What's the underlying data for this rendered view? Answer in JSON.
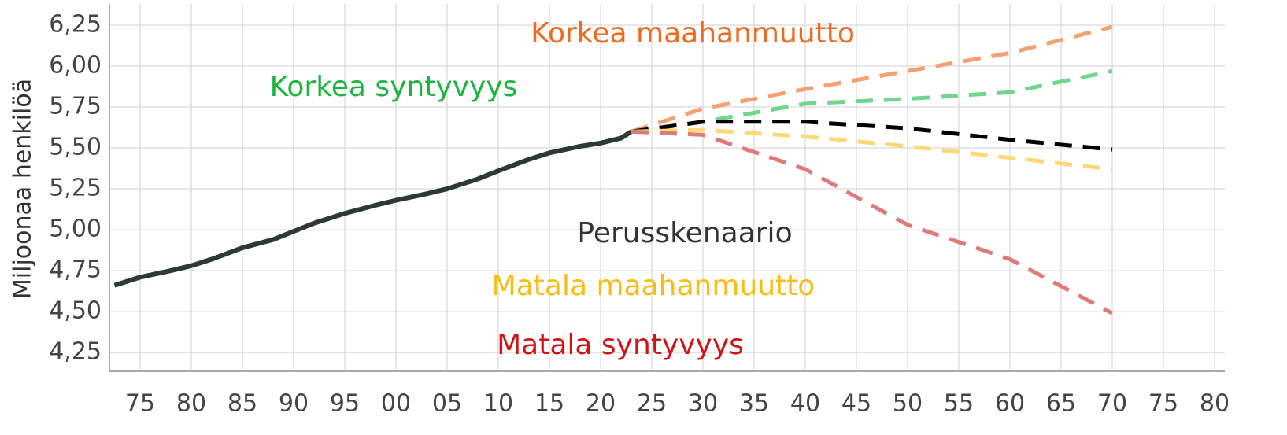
{
  "chart_data": {
    "type": "line",
    "y_label": "Miljoonaa henkilöä",
    "xlim": [
      1972,
      2081
    ],
    "ylim": [
      4.135,
      6.38
    ],
    "grid": true,
    "xticks": [
      {
        "value": 1975,
        "label": "75"
      },
      {
        "value": 1980,
        "label": "80"
      },
      {
        "value": 1985,
        "label": "85"
      },
      {
        "value": 1990,
        "label": "90"
      },
      {
        "value": 1995,
        "label": "95"
      },
      {
        "value": 2000,
        "label": "00"
      },
      {
        "value": 2005,
        "label": "05"
      },
      {
        "value": 2010,
        "label": "10"
      },
      {
        "value": 2015,
        "label": "15"
      },
      {
        "value": 2020,
        "label": "20"
      },
      {
        "value": 2025,
        "label": "25"
      },
      {
        "value": 2030,
        "label": "30"
      },
      {
        "value": 2035,
        "label": "35"
      },
      {
        "value": 2040,
        "label": "40"
      },
      {
        "value": 2045,
        "label": "45"
      },
      {
        "value": 2050,
        "label": "50"
      },
      {
        "value": 2055,
        "label": "55"
      },
      {
        "value": 2060,
        "label": "60"
      },
      {
        "value": 2065,
        "label": "65"
      },
      {
        "value": 2070,
        "label": "70"
      },
      {
        "value": 2075,
        "label": "75"
      },
      {
        "value": 2080,
        "label": "80"
      }
    ],
    "yticks": [
      {
        "value": 4.25,
        "label": "4,25"
      },
      {
        "value": 4.5,
        "label": "4,50"
      },
      {
        "value": 4.75,
        "label": "4,75"
      },
      {
        "value": 5.0,
        "label": "5,00"
      },
      {
        "value": 5.25,
        "label": "5,25"
      },
      {
        "value": 5.5,
        "label": "5,50"
      },
      {
        "value": 5.75,
        "label": "5,75"
      },
      {
        "value": 6.0,
        "label": "6,00"
      },
      {
        "value": 6.25,
        "label": "6,25"
      }
    ],
    "series": [
      {
        "color": "#2c3a2f",
        "dashed": false,
        "x": [
          1972.5,
          1975,
          1978,
          1980,
          1982,
          1985,
          1988,
          1990,
          1992,
          1995,
          1998,
          2000,
          2003,
          2005,
          2008,
          2010,
          2013,
          2015,
          2018,
          2020,
          2022,
          2023
        ],
        "values": [
          4.66,
          4.71,
          4.75,
          4.78,
          4.82,
          4.89,
          4.94,
          4.99,
          5.04,
          5.1,
          5.15,
          5.18,
          5.22,
          5.25,
          5.31,
          5.36,
          5.43,
          5.47,
          5.51,
          5.53,
          5.56,
          5.6
        ]
      },
      {
        "name": "Korkea maahanmuutto",
        "color": "#f5a070",
        "label_color": "#f06a1e",
        "dashed": true,
        "x": [
          2023,
          2030,
          2040,
          2050,
          2060,
          2070
        ],
        "values": [
          5.6,
          5.74,
          5.86,
          5.97,
          6.08,
          6.24
        ]
      },
      {
        "name": "Korkea syntyvyys",
        "color": "#6ed68e",
        "label_color": "#1db440",
        "dashed": true,
        "x": [
          2023,
          2030,
          2040,
          2050,
          2060,
          2070
        ],
        "values": [
          5.6,
          5.66,
          5.77,
          5.8,
          5.84,
          5.97
        ]
      },
      {
        "name": "Perusskenaario",
        "color": "#000000",
        "label_color": "#333333",
        "dashed": true,
        "x": [
          2023,
          2030,
          2040,
          2050,
          2060,
          2070
        ],
        "values": [
          5.6,
          5.66,
          5.66,
          5.62,
          5.55,
          5.49
        ]
      },
      {
        "name": "Matala maahanmuutto",
        "color": "#fcd877",
        "label_color": "#f9bd12",
        "dashed": true,
        "x": [
          2023,
          2030,
          2040,
          2050,
          2060,
          2070
        ],
        "values": [
          5.6,
          5.61,
          5.57,
          5.51,
          5.44,
          5.37
        ]
      },
      {
        "name": "Matala syntyvyys",
        "color": "#e07a7a",
        "label_color": "#cf1515",
        "dashed": true,
        "x": [
          2023,
          2030,
          2040,
          2050,
          2060,
          2070
        ],
        "values": [
          5.6,
          5.58,
          5.37,
          5.03,
          4.82,
          4.49
        ]
      }
    ]
  }
}
